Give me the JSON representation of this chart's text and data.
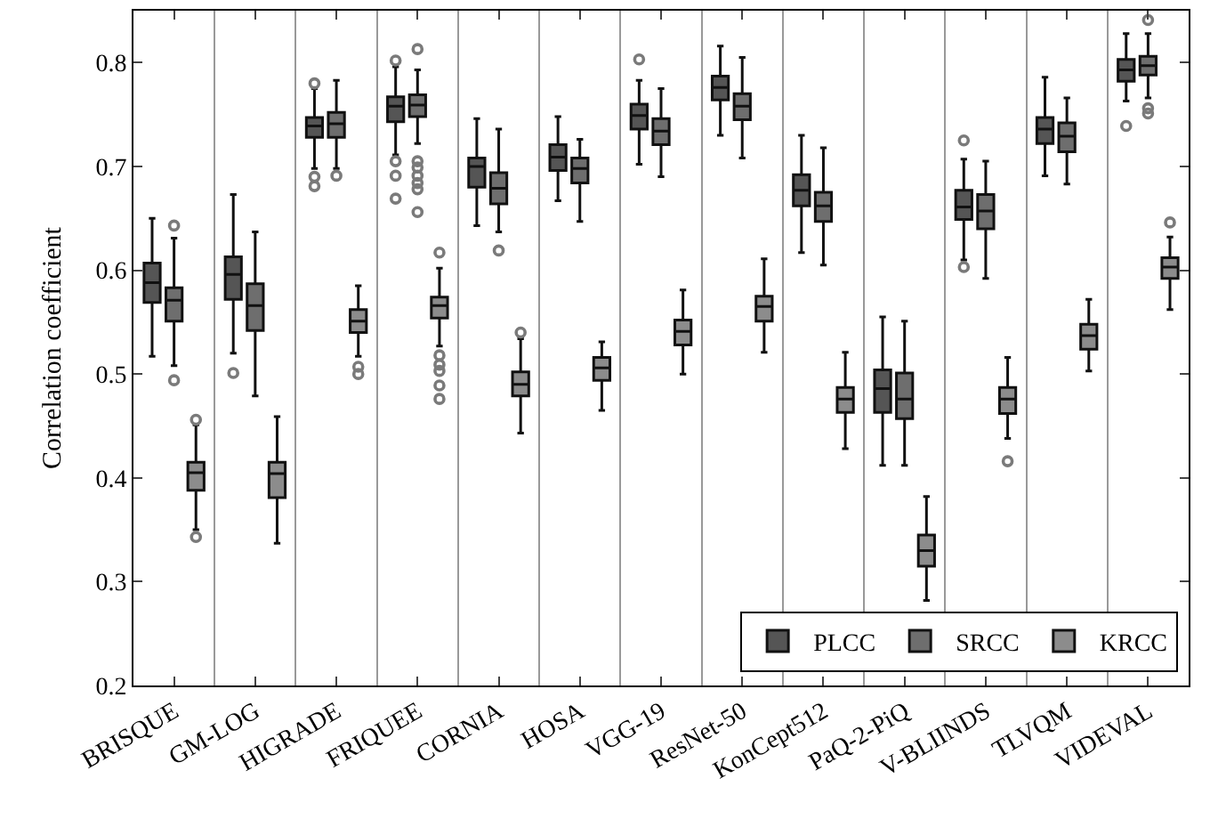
{
  "chart_data": {
    "type": "box",
    "ylabel": "Correlation coefficient",
    "categories": [
      "BRISQUE",
      "GM-LOG",
      "HIGRADE",
      "FRIQUEE",
      "CORNIA",
      "HOSA",
      "VGG-19",
      "ResNet-50",
      "KonCept512",
      "PaQ-2-PiQ",
      "V-BLIINDS",
      "TLVQM",
      "VIDEVAL"
    ],
    "ylim": [
      0.2,
      0.85
    ],
    "yticks": [
      0.2,
      0.3,
      0.4,
      0.5,
      0.6,
      0.7,
      0.8
    ],
    "grid": "x",
    "legend": "bottom right",
    "series": [
      {
        "name": "PLCC",
        "color": "#555555",
        "boxes": [
          {
            "low": 0.517,
            "q1": 0.569,
            "median": 0.588,
            "q3": 0.607,
            "high": 0.65
          },
          {
            "low": 0.52,
            "q1": 0.572,
            "median": 0.596,
            "q3": 0.613,
            "high": 0.673,
            "outliers": [
              0.501
            ]
          },
          {
            "low": 0.698,
            "q1": 0.728,
            "median": 0.739,
            "q3": 0.747,
            "high": 0.775,
            "outliers": [
              0.78,
              0.69,
              0.681
            ]
          },
          {
            "low": 0.711,
            "q1": 0.743,
            "median": 0.758,
            "q3": 0.767,
            "high": 0.796,
            "outliers": [
              0.802,
              0.705,
              0.691,
              0.669
            ]
          },
          {
            "low": 0.643,
            "q1": 0.68,
            "median": 0.7,
            "q3": 0.708,
            "high": 0.746
          },
          {
            "low": 0.667,
            "q1": 0.696,
            "median": 0.709,
            "q3": 0.721,
            "high": 0.748
          },
          {
            "low": 0.702,
            "q1": 0.736,
            "median": 0.749,
            "q3": 0.76,
            "high": 0.783,
            "outliers": [
              0.803
            ]
          },
          {
            "low": 0.73,
            "q1": 0.764,
            "median": 0.776,
            "q3": 0.787,
            "high": 0.816
          },
          {
            "low": 0.617,
            "q1": 0.662,
            "median": 0.677,
            "q3": 0.692,
            "high": 0.73
          },
          {
            "low": 0.412,
            "q1": 0.463,
            "median": 0.486,
            "q3": 0.504,
            "high": 0.555
          },
          {
            "low": 0.61,
            "q1": 0.649,
            "median": 0.661,
            "q3": 0.677,
            "high": 0.707,
            "outliers": [
              0.725,
              0.603
            ]
          },
          {
            "low": 0.691,
            "q1": 0.722,
            "median": 0.736,
            "q3": 0.747,
            "high": 0.786
          },
          {
            "low": 0.763,
            "q1": 0.782,
            "median": 0.793,
            "q3": 0.803,
            "high": 0.828,
            "outliers": [
              0.739
            ]
          }
        ]
      },
      {
        "name": "SRCC",
        "color": "#6e6e6e",
        "boxes": [
          {
            "low": 0.508,
            "q1": 0.551,
            "median": 0.571,
            "q3": 0.583,
            "high": 0.631,
            "outliers": [
              0.643,
              0.494
            ]
          },
          {
            "low": 0.479,
            "q1": 0.542,
            "median": 0.566,
            "q3": 0.587,
            "high": 0.637
          },
          {
            "low": 0.698,
            "q1": 0.728,
            "median": 0.741,
            "q3": 0.752,
            "high": 0.783,
            "outliers": [
              0.691
            ]
          },
          {
            "low": 0.722,
            "q1": 0.748,
            "median": 0.759,
            "q3": 0.769,
            "high": 0.793,
            "outliers": [
              0.813,
              0.705,
              0.699,
              0.691,
              0.684,
              0.678,
              0.656
            ]
          },
          {
            "low": 0.637,
            "q1": 0.664,
            "median": 0.679,
            "q3": 0.694,
            "high": 0.736,
            "outliers": [
              0.619
            ]
          },
          {
            "low": 0.647,
            "q1": 0.684,
            "median": 0.698,
            "q3": 0.708,
            "high": 0.726
          },
          {
            "low": 0.69,
            "q1": 0.721,
            "median": 0.734,
            "q3": 0.746,
            "high": 0.775
          },
          {
            "low": 0.708,
            "q1": 0.745,
            "median": 0.758,
            "q3": 0.77,
            "high": 0.805
          },
          {
            "low": 0.605,
            "q1": 0.647,
            "median": 0.662,
            "q3": 0.675,
            "high": 0.718
          },
          {
            "low": 0.412,
            "q1": 0.457,
            "median": 0.476,
            "q3": 0.501,
            "high": 0.551
          },
          {
            "low": 0.592,
            "q1": 0.64,
            "median": 0.657,
            "q3": 0.673,
            "high": 0.705
          },
          {
            "low": 0.683,
            "q1": 0.714,
            "median": 0.729,
            "q3": 0.742,
            "high": 0.766
          },
          {
            "low": 0.766,
            "q1": 0.788,
            "median": 0.797,
            "q3": 0.806,
            "high": 0.828,
            "outliers": [
              0.841,
              0.756,
              0.751
            ]
          }
        ]
      },
      {
        "name": "KRCC",
        "color": "#8c8c8c",
        "boxes": [
          {
            "low": 0.35,
            "q1": 0.388,
            "median": 0.405,
            "q3": 0.415,
            "high": 0.451,
            "outliers": [
              0.456,
              0.343
            ]
          },
          {
            "low": 0.337,
            "q1": 0.381,
            "median": 0.404,
            "q3": 0.415,
            "high": 0.459
          },
          {
            "low": 0.517,
            "q1": 0.54,
            "median": 0.551,
            "q3": 0.562,
            "high": 0.585,
            "outliers": [
              0.507,
              0.5
            ]
          },
          {
            "low": 0.527,
            "q1": 0.554,
            "median": 0.566,
            "q3": 0.574,
            "high": 0.602,
            "outliers": [
              0.617,
              0.518,
              0.509,
              0.503,
              0.489,
              0.476
            ]
          },
          {
            "low": 0.443,
            "q1": 0.479,
            "median": 0.49,
            "q3": 0.502,
            "high": 0.534,
            "outliers": [
              0.54
            ]
          },
          {
            "low": 0.465,
            "q1": 0.494,
            "median": 0.506,
            "q3": 0.516,
            "high": 0.531
          },
          {
            "low": 0.5,
            "q1": 0.528,
            "median": 0.541,
            "q3": 0.552,
            "high": 0.581
          },
          {
            "low": 0.521,
            "q1": 0.551,
            "median": 0.565,
            "q3": 0.575,
            "high": 0.611
          },
          {
            "low": 0.428,
            "q1": 0.463,
            "median": 0.476,
            "q3": 0.487,
            "high": 0.521
          },
          {
            "low": 0.282,
            "q1": 0.315,
            "median": 0.33,
            "q3": 0.345,
            "high": 0.382
          },
          {
            "low": 0.438,
            "q1": 0.462,
            "median": 0.476,
            "q3": 0.487,
            "high": 0.516,
            "outliers": [
              0.416
            ]
          },
          {
            "low": 0.503,
            "q1": 0.524,
            "median": 0.537,
            "q3": 0.548,
            "high": 0.572
          },
          {
            "low": 0.562,
            "q1": 0.592,
            "median": 0.603,
            "q3": 0.612,
            "high": 0.632,
            "outliers": [
              0.646
            ]
          }
        ]
      }
    ]
  }
}
